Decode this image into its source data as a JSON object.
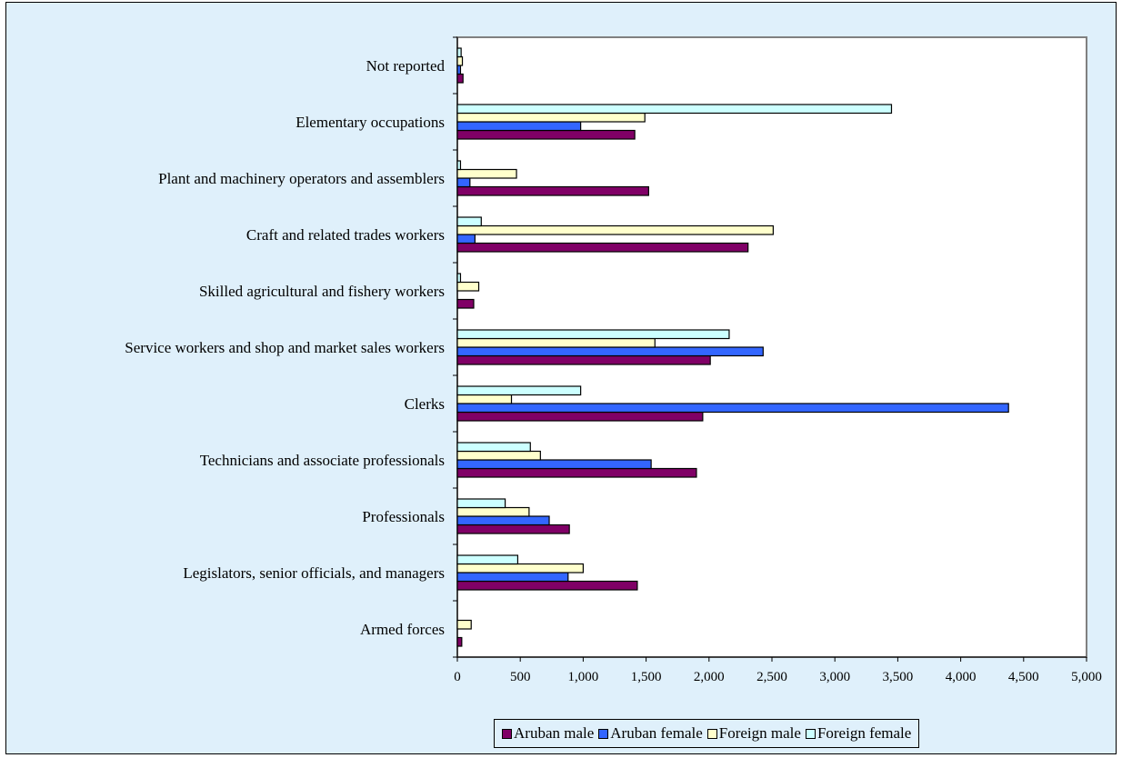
{
  "chart_data": {
    "type": "bar",
    "orientation": "horizontal",
    "categories": [
      "Armed forces",
      "Legislators, senior officials, and managers",
      "Professionals",
      "Technicians and associate professionals",
      "Clerks",
      "Service workers and shop and market sales workers",
      "Skilled agricultural and fishery workers",
      "Craft and related trades workers",
      "Plant and machinery operators and assemblers",
      "Elementary occupations",
      "Not reported"
    ],
    "series": [
      {
        "name": "Aruban male",
        "color": "#800066",
        "values": [
          35,
          1430,
          890,
          1900,
          1950,
          2010,
          130,
          2310,
          1520,
          1410,
          45
        ]
      },
      {
        "name": "Aruban female",
        "color": "#3366ff",
        "values": [
          0,
          880,
          730,
          1540,
          4380,
          2430,
          0,
          140,
          100,
          980,
          25
        ]
      },
      {
        "name": "Foreign male",
        "color": "#ffffcc",
        "values": [
          110,
          1000,
          570,
          660,
          430,
          1570,
          170,
          2510,
          470,
          1490,
          40
        ]
      },
      {
        "name": "Foreign female",
        "color": "#ccffff",
        "values": [
          0,
          480,
          380,
          580,
          980,
          2160,
          25,
          190,
          25,
          3450,
          30
        ]
      }
    ],
    "x_ticks": [
      "0",
      "500",
      "1,000",
      "1,500",
      "2,000",
      "2,500",
      "3,000",
      "3,500",
      "4,000",
      "4,500",
      "5,000"
    ],
    "xlim": [
      0,
      5000
    ],
    "grid": "vertical",
    "legend_position": "bottom"
  }
}
